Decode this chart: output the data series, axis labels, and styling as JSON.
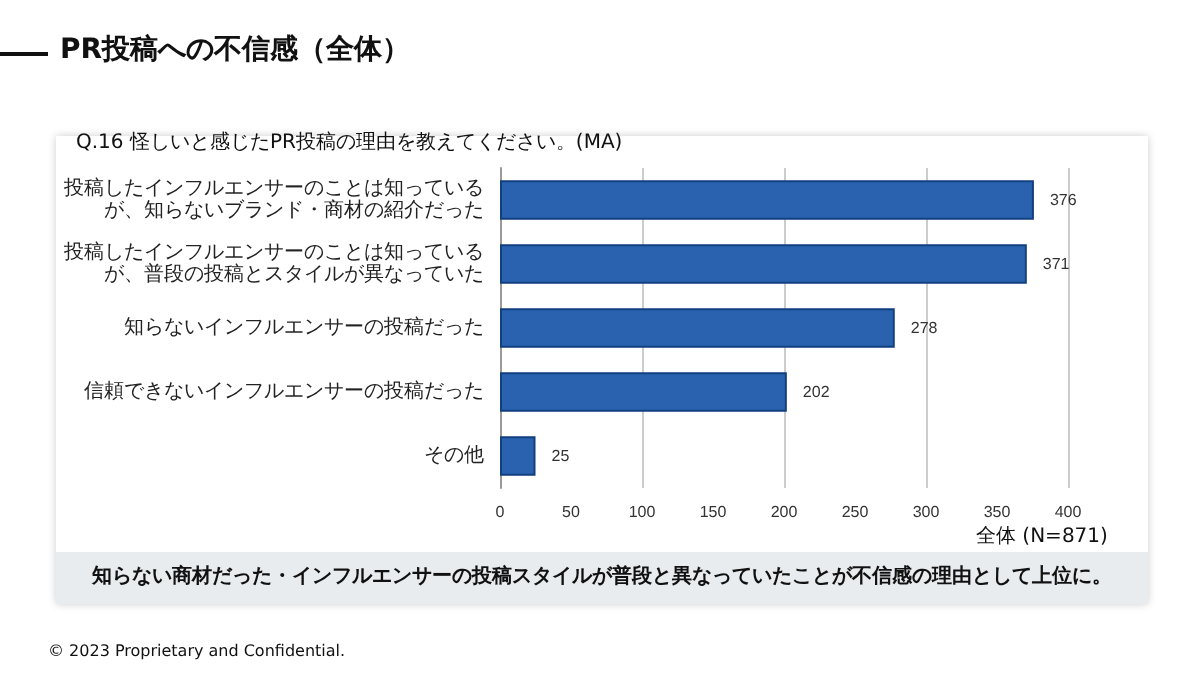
{
  "chart_data": {
    "type": "bar",
    "orientation": "horizontal",
    "title": "PR投稿への不信感（全体）",
    "subtitle": "Q.16 怪しいと感じたPR投稿の理由を教えてください。(MA)",
    "categories": [
      "投稿したインフルエンサーのことは知っているが、知らないブランド・商材の紹介だった",
      "投稿したインフルエンサーのことは知っているが、普段の投稿とスタイルが異なっていた",
      "知らないインフルエンサーの投稿だった",
      "信頼できないインフルエンサーの投稿だった",
      "その他"
    ],
    "values": [
      376,
      371,
      278,
      202,
      25
    ],
    "color": "#2a62b0",
    "data_labels": true,
    "xlim": [
      0,
      400
    ],
    "xticks": [
      0,
      50,
      100,
      150,
      200,
      250,
      300,
      350,
      400
    ],
    "grid": "x",
    "annotations": [
      "全体 (N=871)",
      "知らない商材だった・インフルエンサーの投稿スタイルが普段と異なっていたことが不信感の理由として上位に。",
      "© 2023 Proprietary and Confidential."
    ]
  }
}
